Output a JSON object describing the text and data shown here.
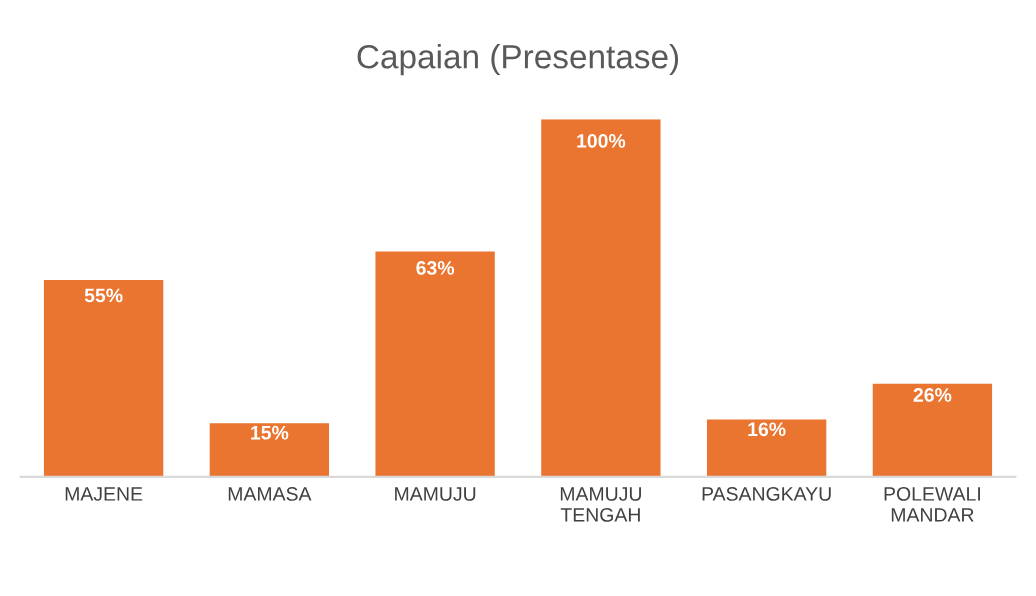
{
  "chart_data": {
    "type": "bar",
    "title": "Capaian (Presentase)",
    "categories": [
      "MAJENE",
      "MAMASA",
      "MAMUJU",
      "MAMUJU TENGAH",
      "PASANGKAYU",
      "POLEWALI MANDAR"
    ],
    "values": [
      55,
      15,
      63,
      100,
      16,
      26
    ],
    "value_labels": [
      "55%",
      "15%",
      "63%",
      "100%",
      "16%",
      "26%"
    ],
    "color": "#ea7530",
    "grid": false,
    "legend": false
  }
}
